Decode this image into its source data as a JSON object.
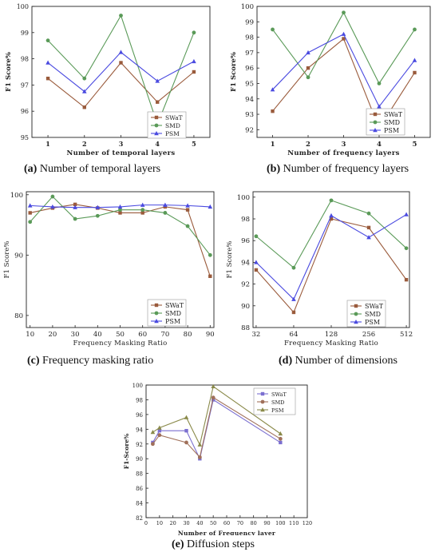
{
  "colors": {
    "SWaT": "#9a5b3c",
    "SMD": "#5a9a58",
    "PSM": "#4a4ae0",
    "PSM_e": "#8a8a4a",
    "SWaT_e": "#7b6fd0",
    "SMD_e": "#a0705a"
  },
  "captions": [
    {
      "letter": "(a)",
      "text": " Number of temporal layers"
    },
    {
      "letter": "(b)",
      "text": " Number of frequency layers"
    },
    {
      "letter": "(c)",
      "text": " Frequency masking ratio"
    },
    {
      "letter": "(d)",
      "text": " Number of dimensions"
    },
    {
      "letter": "(e)",
      "text": " Diffusion steps"
    }
  ],
  "chart_data": [
    {
      "type": "line",
      "xlabel": "Number of temporal layers",
      "ylabel": "F1 Score%",
      "x": [
        1,
        2,
        3,
        4,
        5
      ],
      "xticks": [
        "1",
        "2",
        "3",
        "4",
        "5"
      ],
      "ylim": [
        95,
        100
      ],
      "yticks": [
        "95",
        "96",
        "97",
        "98",
        "99",
        "100"
      ],
      "legend_position": "bottom-right",
      "series": [
        {
          "name": "SWaT",
          "values": [
            97.25,
            96.15,
            97.85,
            96.35,
            97.5
          ]
        },
        {
          "name": "SMD",
          "values": [
            98.7,
            97.25,
            99.65,
            95.5,
            99.0
          ]
        },
        {
          "name": "PSM",
          "values": [
            97.85,
            96.75,
            98.25,
            97.15,
            97.9
          ]
        }
      ]
    },
    {
      "type": "line",
      "xlabel": "Number of frequency layers",
      "ylabel": "F1 Score%",
      "x": [
        1,
        2,
        3,
        4,
        5
      ],
      "xticks": [
        "1",
        "2",
        "3",
        "4",
        "5"
      ],
      "ylim": [
        91.5,
        100
      ],
      "yticks": [
        "92",
        "93",
        "94",
        "95",
        "96",
        "97",
        "98",
        "99",
        "100"
      ],
      "legend_position": "bottom-right",
      "series": [
        {
          "name": "SWaT",
          "values": [
            93.2,
            96.0,
            97.9,
            92.1,
            95.7
          ]
        },
        {
          "name": "SMD",
          "values": [
            98.5,
            95.4,
            99.6,
            95.0,
            98.5
          ]
        },
        {
          "name": "PSM",
          "values": [
            94.6,
            97.0,
            98.2,
            93.5,
            96.5
          ]
        }
      ]
    },
    {
      "type": "line",
      "xlabel": "Frequency Masking Ratio",
      "ylabel": "F1 Score%",
      "x": [
        10,
        20,
        30,
        40,
        50,
        60,
        70,
        80,
        90
      ],
      "xticks": [
        "10",
        "20",
        "30",
        "40",
        "50",
        "60",
        "70",
        "80",
        "90"
      ],
      "ylim": [
        78,
        100.5
      ],
      "yticks": [
        "80",
        "90",
        "100"
      ],
      "legend_position": "bottom-right",
      "series": [
        {
          "name": "SWaT",
          "values": [
            97.0,
            97.8,
            98.4,
            97.8,
            97.0,
            97.0,
            98.0,
            97.5,
            86.5
          ]
        },
        {
          "name": "SMD",
          "values": [
            95.5,
            99.7,
            96.0,
            96.5,
            97.5,
            97.5,
            97.0,
            94.8,
            90.0
          ]
        },
        {
          "name": "PSM",
          "values": [
            98.2,
            98.0,
            97.9,
            97.9,
            98.0,
            98.3,
            98.3,
            98.2,
            98.0
          ]
        }
      ]
    },
    {
      "type": "line",
      "xlabel": "Frequency Masking Ratio",
      "ylabel": "F1 Score%",
      "x": [
        32,
        64,
        128,
        256,
        512
      ],
      "xticks": [
        "32",
        "64",
        "128",
        "256",
        "512"
      ],
      "ylim": [
        88,
        100.5
      ],
      "yticks": [
        "88",
        "90",
        "92",
        "94",
        "96",
        "98",
        "100"
      ],
      "legend_position": "bottom-right",
      "series": [
        {
          "name": "SWaT",
          "values": [
            93.3,
            89.4,
            98.0,
            97.2,
            92.4
          ]
        },
        {
          "name": "SMD",
          "values": [
            96.4,
            93.5,
            99.7,
            98.5,
            95.3
          ]
        },
        {
          "name": "PSM",
          "values": [
            94.0,
            90.6,
            98.3,
            96.3,
            98.4
          ]
        }
      ]
    },
    {
      "type": "line",
      "xlabel": "Number of Frequency layer",
      "ylabel": "F1-Score%",
      "x": [
        5,
        10,
        30,
        40,
        50,
        100
      ],
      "xticks": [
        "0",
        "10",
        "20",
        "30",
        "40",
        "50",
        "60",
        "70",
        "80",
        "90",
        "100",
        "110",
        "120"
      ],
      "xlim": [
        0,
        120
      ],
      "ylim": [
        82,
        100
      ],
      "yticks": [
        "82",
        "84",
        "86",
        "88",
        "90",
        "92",
        "94",
        "96",
        "98",
        "100"
      ],
      "legend_position": "top-right",
      "series": [
        {
          "name": "SWaT",
          "values": [
            92.2,
            93.8,
            93.8,
            90.0,
            98.0,
            92.2
          ]
        },
        {
          "name": "SMD",
          "values": [
            92.0,
            93.2,
            92.2,
            90.2,
            98.3,
            92.7
          ]
        },
        {
          "name": "PSM",
          "values": [
            93.6,
            94.2,
            95.6,
            91.9,
            99.8,
            93.4
          ]
        }
      ]
    }
  ]
}
